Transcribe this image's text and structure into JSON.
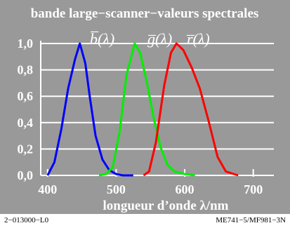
{
  "colors": {
    "background": "#999999",
    "grid": "#ffffff",
    "text": "#ffffff"
  },
  "chart_data": {
    "type": "line",
    "title": "bande large−scanner−valeurs spectrales",
    "xlabel": "longueur d’onde λ/nm",
    "ylabel": "",
    "xlim": [
      390,
      730
    ],
    "ylim": [
      0,
      1.0
    ],
    "xticks": [
      {
        "value": 400,
        "label": "400"
      },
      {
        "value": 500,
        "label": "500"
      },
      {
        "value": 600,
        "label": "600"
      },
      {
        "value": 700,
        "label": "700"
      }
    ],
    "yticks": [
      {
        "value": 0.0,
        "label": "0,0"
      },
      {
        "value": 0.2,
        "label": "0,2"
      },
      {
        "value": 0.4,
        "label": "0,4"
      },
      {
        "value": 0.6,
        "label": "0,6"
      },
      {
        "value": 0.8,
        "label": "0,8"
      },
      {
        "value": 1.0,
        "label": "1,0"
      }
    ],
    "grid": true,
    "legend": [
      {
        "text": "b̅(λ)",
        "color": "#ffffff"
      },
      {
        "text": "g̅(λ)",
        "color": "#ffffff"
      },
      {
        "text": "r̅(λ)",
        "color": "#ffffff"
      }
    ],
    "series": [
      {
        "color": "#0000ff",
        "x": [
          400,
          410,
          420,
          430,
          440,
          447,
          455,
          462,
          470,
          480,
          490,
          500,
          510,
          525
        ],
        "y": [
          0.0,
          0.1,
          0.35,
          0.66,
          0.88,
          1.0,
          0.85,
          0.58,
          0.3,
          0.12,
          0.04,
          0.01,
          0.0,
          0.0
        ]
      },
      {
        "color": "#00ee00",
        "x": [
          475,
          485,
          495,
          505,
          515,
          527,
          535,
          545,
          555,
          565,
          575,
          585,
          600,
          615
        ],
        "y": [
          0.0,
          0.01,
          0.06,
          0.33,
          0.76,
          1.0,
          0.93,
          0.7,
          0.43,
          0.21,
          0.08,
          0.03,
          0.01,
          0.0
        ]
      },
      {
        "color": "#ff0000",
        "x": [
          540,
          548,
          558,
          570,
          580,
          588,
          598,
          610,
          622,
          635,
          648,
          660,
          678
        ],
        "y": [
          0.0,
          0.03,
          0.25,
          0.68,
          0.93,
          1.0,
          0.95,
          0.82,
          0.66,
          0.41,
          0.14,
          0.03,
          0.0
        ]
      }
    ]
  },
  "footer": {
    "left": "2−013000−L0",
    "right": "ME741−5/MF981−3N"
  }
}
